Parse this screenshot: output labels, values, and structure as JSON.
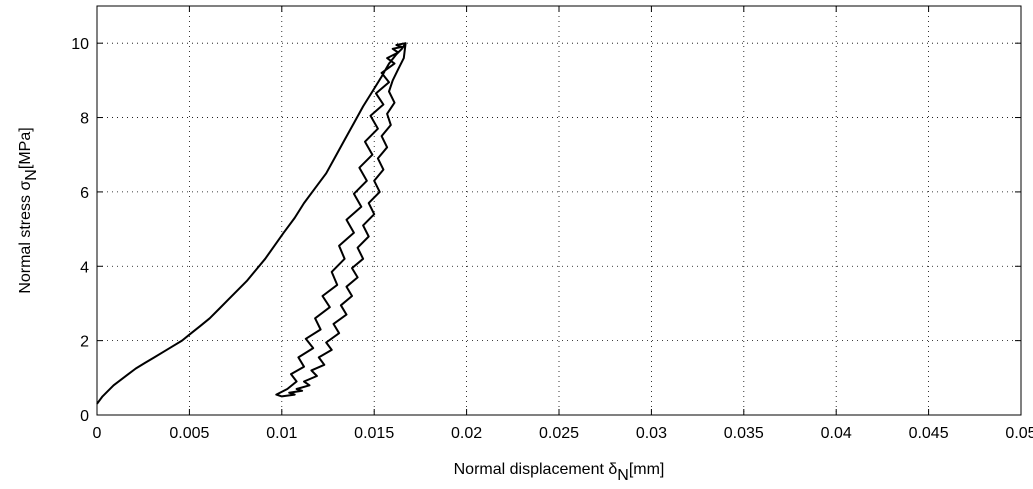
{
  "chart_data": {
    "type": "line",
    "xlabel": "Normal displacement δ",
    "xlabel_subscript": "N",
    "xlabel_unit": "[mm]",
    "ylabel": "Normal stress σ",
    "ylabel_subscript": "N",
    "ylabel_unit": "[MPa]",
    "xlim": [
      0,
      0.05
    ],
    "ylim": [
      0,
      11
    ],
    "xticks": [
      0,
      0.005,
      0.01,
      0.015,
      0.02,
      0.025,
      0.03,
      0.035,
      0.04,
      0.045,
      0.05
    ],
    "xtick_labels": [
      "0",
      "0.005",
      "0.01",
      "0.015",
      "0.02",
      "0.025",
      "0.03",
      "0.035",
      "0.04",
      "0.045",
      "0.05"
    ],
    "yticks": [
      0,
      2,
      4,
      6,
      8,
      10
    ],
    "ytick_labels": [
      "0",
      "2",
      "4",
      "6",
      "8",
      "10"
    ],
    "grid": true,
    "series": [
      {
        "line_color": "#000000",
        "x": [
          0,
          0.0003,
          0.0006,
          0.0009,
          0.0013,
          0.0017,
          0.0021,
          0.0026,
          0.0031,
          0.0036,
          0.0041,
          0.0046,
          0.0051,
          0.0056,
          0.0061,
          0.0066,
          0.0071,
          0.0076,
          0.0081,
          0.0086,
          0.0091,
          0.0096,
          0.0101,
          0.0107,
          0.0112,
          0.0118,
          0.0124,
          0.0129,
          0.0134,
          0.0139,
          0.0144,
          0.0149,
          0.0154,
          0.0158,
          0.0162,
          0.0165,
          0.0167,
          0.0166,
          0.0163,
          0.016,
          0.0158,
          0.0161,
          0.0157,
          0.0159,
          0.0154,
          0.0157,
          0.0152,
          0.0155,
          0.015,
          0.0153,
          0.0147,
          0.015,
          0.0144,
          0.0147,
          0.0141,
          0.0144,
          0.0138,
          0.0141,
          0.0135,
          0.0138,
          0.0132,
          0.0135,
          0.0128,
          0.0131,
          0.0124,
          0.0127,
          0.012,
          0.0123,
          0.0116,
          0.0119,
          0.0112,
          0.0115,
          0.0108,
          0.0111,
          0.0104,
          0.0107,
          0.01,
          0.0097,
          0.0103,
          0.0108,
          0.0105,
          0.0112,
          0.0109,
          0.0117,
          0.0113,
          0.0121,
          0.0118,
          0.0126,
          0.0122,
          0.013,
          0.0127,
          0.0134,
          0.0131,
          0.0139,
          0.0135,
          0.0143,
          0.0139,
          0.0146,
          0.0142,
          0.0149,
          0.0145,
          0.0152,
          0.0148,
          0.0155,
          0.0151,
          0.0158,
          0.0154,
          0.0161,
          0.0157,
          0.0163,
          0.016,
          0.0165,
          0.0162,
          0.0167
        ],
        "y": [
          0.3,
          0.5,
          0.65,
          0.8,
          0.95,
          1.1,
          1.25,
          1.4,
          1.55,
          1.7,
          1.85,
          2.0,
          2.2,
          2.4,
          2.6,
          2.85,
          3.1,
          3.35,
          3.6,
          3.9,
          4.2,
          4.55,
          4.9,
          5.3,
          5.7,
          6.1,
          6.5,
          6.95,
          7.4,
          7.85,
          8.3,
          8.7,
          9.1,
          9.45,
          9.7,
          9.85,
          10.0,
          9.6,
          9.3,
          9.0,
          8.7,
          8.4,
          8.1,
          7.8,
          7.5,
          7.2,
          6.9,
          6.6,
          6.3,
          6.0,
          5.7,
          5.4,
          5.1,
          4.8,
          4.5,
          4.2,
          3.95,
          3.7,
          3.45,
          3.2,
          2.95,
          2.7,
          2.45,
          2.2,
          1.95,
          1.75,
          1.55,
          1.35,
          1.2,
          1.05,
          0.9,
          0.8,
          0.7,
          0.65,
          0.6,
          0.55,
          0.5,
          0.55,
          0.7,
          0.9,
          1.1,
          1.3,
          1.55,
          1.8,
          2.05,
          2.3,
          2.6,
          2.9,
          3.2,
          3.5,
          3.85,
          4.2,
          4.55,
          4.9,
          5.25,
          5.6,
          5.95,
          6.3,
          6.65,
          7.0,
          7.35,
          7.7,
          8.05,
          8.35,
          8.65,
          8.95,
          9.2,
          9.45,
          9.6,
          9.75,
          9.85,
          9.9,
          9.95,
          10.0
        ]
      }
    ]
  }
}
